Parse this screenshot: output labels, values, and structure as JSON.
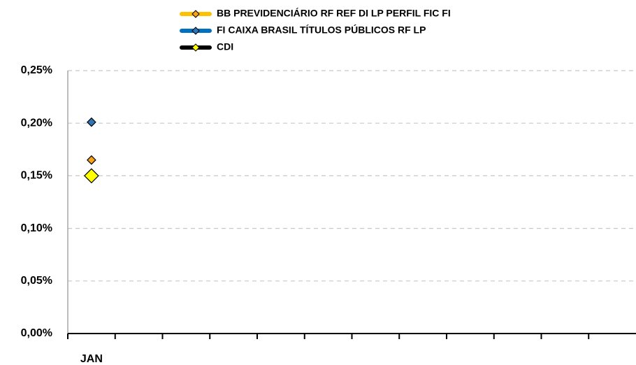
{
  "chart_data": {
    "type": "line",
    "categories": [
      "JAN",
      null,
      null,
      null,
      null,
      null,
      null,
      null,
      null,
      null,
      null,
      null
    ],
    "series": [
      {
        "name": "BB PREVIDENCIÁRIO RF REF DI LP PERFIL FIC FI",
        "color": "#ffc000",
        "marker_color": "#f7a21b",
        "marker_size": 6,
        "values": [
          0.165,
          null,
          null,
          null,
          null,
          null,
          null,
          null,
          null,
          null,
          null,
          null
        ]
      },
      {
        "name": "FI CAIXA BRASIL TÍTULOS PÚBLICOS RF LP",
        "color": "#0070c0",
        "marker_color": "#2e75b6",
        "marker_size": 6,
        "values": [
          0.201,
          null,
          null,
          null,
          null,
          null,
          null,
          null,
          null,
          null,
          null,
          null
        ]
      },
      {
        "name": "CDI",
        "color": "#000000",
        "marker_color": "#ffff00",
        "marker_size": 10,
        "values": [
          0.15,
          null,
          null,
          null,
          null,
          null,
          null,
          null,
          null,
          null,
          null,
          null
        ]
      }
    ],
    "ylim": [
      0,
      0.25
    ],
    "yticks": [
      {
        "value": 0,
        "label": "0,00%"
      },
      {
        "value": 0.05,
        "label": "0,05%"
      },
      {
        "value": 0.1,
        "label": "0,10%"
      },
      {
        "value": 0.15,
        "label": "0,15%"
      },
      {
        "value": 0.2,
        "label": "0,20%"
      },
      {
        "value": 0.25,
        "label": "0,25%"
      }
    ],
    "grid": true,
    "legend": "top"
  }
}
